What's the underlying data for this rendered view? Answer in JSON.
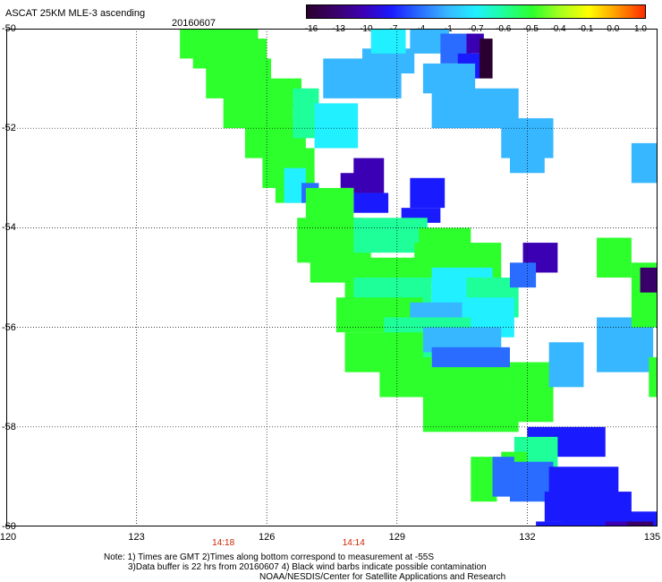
{
  "title": "ASCAT 25KM MLE-3 ascending",
  "date": "20160607",
  "colorbar": {
    "labels": [
      "-16",
      "-13",
      "-10",
      "-7",
      "-4",
      "-1",
      "-0.7",
      "-0.6",
      "-0.5",
      "-0.4",
      "-0.1",
      "0.0",
      "1.0"
    ],
    "colors": [
      "#2a0030",
      "#3a006a",
      "#3c00b4",
      "#1a1aff",
      "#2a6cff",
      "#37b7ff",
      "#20f0ff",
      "#1eff9a",
      "#2cff2c",
      "#a8ff1e",
      "#ffff00",
      "#ff9a00",
      "#ff2a00"
    ]
  },
  "axes": {
    "lat_labels": [
      "-50",
      "-52",
      "-54",
      "-56",
      "-58",
      "-60"
    ],
    "lat_values": [
      -50,
      -52,
      -54,
      -56,
      -58,
      -60
    ],
    "lon_labels": [
      "120",
      "123",
      "126",
      "129",
      "132",
      "135"
    ],
    "lon_values": [
      120,
      123,
      126,
      129,
      132,
      135
    ],
    "lat_range": [
      -50,
      -60
    ],
    "lon_range": [
      120,
      135
    ]
  },
  "time_labels": [
    {
      "text": "14:18",
      "lon": 125
    },
    {
      "text": "14:14",
      "lon": 128
    }
  ],
  "notes": [
    "Note: 1) Times are GMT 2)Times along bottom correspond to measurement at -55S",
    "3)Data buffer is 22 hrs from 20160607 4) Black wind barbs indicate possible contamination",
    "NOAA/NESDIS/Center for Satellite Applications and Research"
  ],
  "swath_cells": [
    {
      "lat": -50.0,
      "lon": 124.0,
      "w": 1.8,
      "h": 0.6,
      "c": "#2cff2c"
    },
    {
      "lat": -50.2,
      "lon": 124.3,
      "w": 1.7,
      "h": 0.6,
      "c": "#2cff2c"
    },
    {
      "lat": -50.6,
      "lon": 124.6,
      "w": 1.5,
      "h": 0.8,
      "c": "#2cff2c"
    },
    {
      "lat": -51.2,
      "lon": 125.0,
      "w": 1.6,
      "h": 0.8,
      "c": "#2cff2c"
    },
    {
      "lat": -51.8,
      "lon": 125.5,
      "w": 1.4,
      "h": 0.8,
      "c": "#2cff2c"
    },
    {
      "lat": -52.4,
      "lon": 125.9,
      "w": 1.2,
      "h": 0.8,
      "c": "#2cff2c"
    },
    {
      "lat": -52.9,
      "lon": 126.2,
      "w": 0.9,
      "h": 0.6,
      "c": "#2cff2c"
    },
    {
      "lat": -51.0,
      "lon": 126.0,
      "w": 0.8,
      "h": 0.6,
      "c": "#2cff2c"
    },
    {
      "lat": -51.2,
      "lon": 126.6,
      "w": 0.6,
      "h": 1.0,
      "c": "#1eff9a"
    },
    {
      "lat": -51.5,
      "lon": 127.1,
      "w": 1.0,
      "h": 0.9,
      "c": "#20f0ff"
    },
    {
      "lat": -50.6,
      "lon": 127.3,
      "w": 1.8,
      "h": 0.8,
      "c": "#37b7ff"
    },
    {
      "lat": -50.4,
      "lon": 128.2,
      "w": 1.2,
      "h": 0.5,
      "c": "#37b7ff"
    },
    {
      "lat": -50.0,
      "lon": 128.4,
      "w": 0.8,
      "h": 0.5,
      "c": "#20f0ff"
    },
    {
      "lat": -50.0,
      "lon": 129.3,
      "w": 0.9,
      "h": 0.5,
      "c": "#37b7ff"
    },
    {
      "lat": -50.1,
      "lon": 130.0,
      "w": 0.7,
      "h": 0.6,
      "c": "#2a6cff"
    },
    {
      "lat": -50.1,
      "lon": 130.6,
      "w": 0.4,
      "h": 0.4,
      "c": "#3c00b4"
    },
    {
      "lat": -50.2,
      "lon": 130.9,
      "w": 0.3,
      "h": 0.8,
      "c": "#2a0030"
    },
    {
      "lat": -50.5,
      "lon": 130.4,
      "w": 0.5,
      "h": 0.5,
      "c": "#1a1aff"
    },
    {
      "lat": -50.7,
      "lon": 129.6,
      "w": 1.2,
      "h": 0.6,
      "c": "#37b7ff"
    },
    {
      "lat": -51.2,
      "lon": 129.8,
      "w": 2.0,
      "h": 0.8,
      "c": "#37b7ff"
    },
    {
      "lat": -51.8,
      "lon": 131.4,
      "w": 1.2,
      "h": 0.8,
      "c": "#37b7ff"
    },
    {
      "lat": -52.4,
      "lon": 131.6,
      "w": 0.8,
      "h": 0.5,
      "c": "#37b7ff"
    },
    {
      "lat": -52.3,
      "lon": 134.4,
      "w": 0.8,
      "h": 0.8,
      "c": "#37b7ff"
    },
    {
      "lat": -52.6,
      "lon": 128.0,
      "w": 0.7,
      "h": 0.7,
      "c": "#3c00b4"
    },
    {
      "lat": -52.9,
      "lon": 127.7,
      "w": 0.4,
      "h": 0.3,
      "c": "#3c00b4"
    },
    {
      "lat": -53.3,
      "lon": 128.0,
      "w": 0.8,
      "h": 0.4,
      "c": "#1a1aff"
    },
    {
      "lat": -53.0,
      "lon": 129.3,
      "w": 0.8,
      "h": 0.6,
      "c": "#1a1aff"
    },
    {
      "lat": -53.6,
      "lon": 129.1,
      "w": 0.9,
      "h": 0.3,
      "c": "#1a1aff"
    },
    {
      "lat": -52.8,
      "lon": 126.4,
      "w": 0.5,
      "h": 0.7,
      "c": "#20f0ff"
    },
    {
      "lat": -53.1,
      "lon": 126.8,
      "w": 0.4,
      "h": 0.4,
      "c": "#2a6cff"
    },
    {
      "lat": -53.2,
      "lon": 126.9,
      "w": 1.1,
      "h": 0.8,
      "c": "#2cff2c"
    },
    {
      "lat": -53.8,
      "lon": 126.7,
      "w": 1.5,
      "h": 0.9,
      "c": "#2cff2c"
    },
    {
      "lat": -54.3,
      "lon": 127.0,
      "w": 1.4,
      "h": 0.8,
      "c": "#2cff2c"
    },
    {
      "lat": -53.8,
      "lon": 128.0,
      "w": 1.7,
      "h": 0.7,
      "c": "#1eff9a"
    },
    {
      "lat": -54.0,
      "lon": 129.5,
      "w": 1.2,
      "h": 0.8,
      "c": "#2cff2c"
    },
    {
      "lat": -54.6,
      "lon": 127.8,
      "w": 1.8,
      "h": 0.9,
      "c": "#2cff2c"
    },
    {
      "lat": -54.3,
      "lon": 129.4,
      "w": 2.0,
      "h": 0.8,
      "c": "#2cff2c"
    },
    {
      "lat": -55.0,
      "lon": 128.0,
      "w": 1.8,
      "h": 0.9,
      "c": "#1eff9a"
    },
    {
      "lat": -54.8,
      "lon": 129.8,
      "w": 1.4,
      "h": 0.8,
      "c": "#20f0ff"
    },
    {
      "lat": -55.0,
      "lon": 130.6,
      "w": 1.2,
      "h": 0.8,
      "c": "#1eff9a"
    },
    {
      "lat": -54.3,
      "lon": 131.9,
      "w": 0.8,
      "h": 0.6,
      "c": "#3c00b4"
    },
    {
      "lat": -54.7,
      "lon": 131.6,
      "w": 0.6,
      "h": 0.5,
      "c": "#2a6cff"
    },
    {
      "lat": -55.4,
      "lon": 127.6,
      "w": 2.0,
      "h": 0.7,
      "c": "#2cff2c"
    },
    {
      "lat": -55.5,
      "lon": 129.3,
      "w": 1.4,
      "h": 0.8,
      "c": "#37b7ff"
    },
    {
      "lat": -55.4,
      "lon": 130.5,
      "w": 1.2,
      "h": 0.8,
      "c": "#20f0ff"
    },
    {
      "lat": -55.8,
      "lon": 128.7,
      "w": 2.0,
      "h": 0.8,
      "c": "#1eff9a"
    },
    {
      "lat": -56.1,
      "lon": 127.8,
      "w": 1.8,
      "h": 0.8,
      "c": "#2cff2c"
    },
    {
      "lat": -56.0,
      "lon": 129.6,
      "w": 1.8,
      "h": 0.5,
      "c": "#37b7ff"
    },
    {
      "lat": -56.4,
      "lon": 129.8,
      "w": 1.8,
      "h": 0.5,
      "c": "#2a6cff"
    },
    {
      "lat": -56.6,
      "lon": 128.6,
      "w": 1.2,
      "h": 0.8,
      "c": "#2cff2c"
    },
    {
      "lat": -57.0,
      "lon": 128.8,
      "w": 1.2,
      "h": 0.4,
      "c": "#2cff2c"
    },
    {
      "lat": -56.8,
      "lon": 129.6,
      "w": 2.0,
      "h": 0.7,
      "c": "#2cff2c"
    },
    {
      "lat": -57.3,
      "lon": 129.6,
      "w": 2.2,
      "h": 0.8,
      "c": "#2cff2c"
    },
    {
      "lat": -56.7,
      "lon": 131.6,
      "w": 1.0,
      "h": 1.2,
      "c": "#2cff2c"
    },
    {
      "lat": -56.3,
      "lon": 132.5,
      "w": 0.8,
      "h": 0.9,
      "c": "#37b7ff"
    },
    {
      "lat": -55.8,
      "lon": 133.6,
      "w": 1.3,
      "h": 1.1,
      "c": "#37b7ff"
    },
    {
      "lat": -54.2,
      "lon": 133.6,
      "w": 0.8,
      "h": 0.8,
      "c": "#2cff2c"
    },
    {
      "lat": -54.7,
      "lon": 134.4,
      "w": 0.7,
      "h": 1.3,
      "c": "#2cff2c"
    },
    {
      "lat": -54.8,
      "lon": 134.6,
      "w": 0.5,
      "h": 0.5,
      "c": "#3a006a"
    },
    {
      "lat": -56.6,
      "lon": 134.8,
      "w": 0.3,
      "h": 0.8,
      "c": "#2cff2c"
    },
    {
      "lat": -58.0,
      "lon": 132.0,
      "w": 1.8,
      "h": 0.6,
      "c": "#1a1aff"
    },
    {
      "lat": -58.2,
      "lon": 131.7,
      "w": 1.0,
      "h": 0.8,
      "c": "#1eff9a"
    },
    {
      "lat": -58.5,
      "lon": 131.4,
      "w": 0.6,
      "h": 0.6,
      "c": "#2cff2c"
    },
    {
      "lat": -58.6,
      "lon": 130.7,
      "w": 0.6,
      "h": 0.9,
      "c": "#2cff2c"
    },
    {
      "lat": -58.6,
      "lon": 131.2,
      "w": 0.5,
      "h": 0.8,
      "c": "#2a6cff"
    },
    {
      "lat": -58.7,
      "lon": 131.6,
      "w": 1.0,
      "h": 0.8,
      "c": "#2a6cff"
    },
    {
      "lat": -58.8,
      "lon": 132.5,
      "w": 1.6,
      "h": 0.8,
      "c": "#1a1aff"
    },
    {
      "lat": -59.3,
      "lon": 132.4,
      "w": 2.0,
      "h": 0.6,
      "c": "#1a1aff"
    },
    {
      "lat": -59.7,
      "lon": 132.8,
      "w": 1.4,
      "h": 0.4,
      "c": "#1a1aff"
    },
    {
      "lat": -59.7,
      "lon": 134.2,
      "w": 0.8,
      "h": 0.5,
      "c": "#1a1aff"
    },
    {
      "lat": -59.9,
      "lon": 132.2,
      "w": 1.6,
      "h": 0.3,
      "c": "#1a1aff"
    },
    {
      "lat": -59.9,
      "lon": 133.8,
      "w": 0.5,
      "h": 0.3,
      "c": "#3c00b4"
    },
    {
      "lat": -59.9,
      "lon": 134.3,
      "w": 0.6,
      "h": 0.3,
      "c": "#3a006a"
    }
  ]
}
